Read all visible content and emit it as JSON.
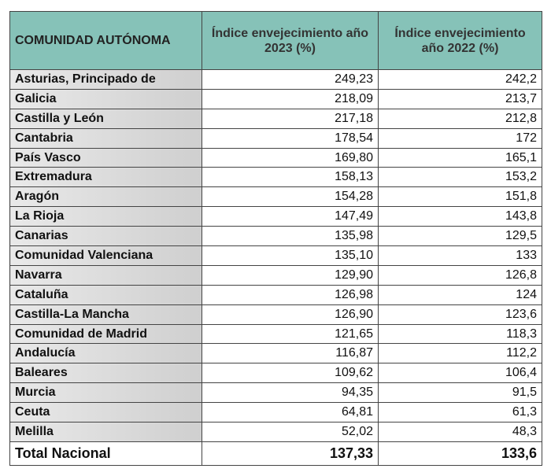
{
  "table": {
    "header": [
      "COMUNIDAD AUTÓNOMA",
      "Índice envejecimiento año 2023 (%)",
      "Índice envejecimiento año 2022 (%)"
    ],
    "rows": [
      [
        "Asturias, Principado de",
        "249,23",
        "242,2"
      ],
      [
        "Galicia",
        "218,09",
        "213,7"
      ],
      [
        "Castilla y León",
        "217,18",
        "212,8"
      ],
      [
        "Cantabria",
        "178,54",
        "172"
      ],
      [
        "País Vasco",
        "169,80",
        "165,1"
      ],
      [
        "Extremadura",
        "158,13",
        "153,2"
      ],
      [
        "Aragón",
        "154,28",
        "151,8"
      ],
      [
        "La Rioja",
        "147,49",
        "143,8"
      ],
      [
        "Canarias",
        "135,98",
        "129,5"
      ],
      [
        "Comunidad Valenciana",
        "135,10",
        "133"
      ],
      [
        "Navarra",
        "129,90",
        "126,8"
      ],
      [
        "Cataluña",
        "126,98",
        "124"
      ],
      [
        "Castilla-La Mancha",
        "126,90",
        "123,6"
      ],
      [
        "Comunidad de Madrid",
        "121,65",
        "118,3"
      ],
      [
        "Andalucía",
        "116,87",
        "112,2"
      ],
      [
        "Baleares",
        "109,62",
        "106,4"
      ],
      [
        "Murcia",
        "94,35",
        "91,5"
      ],
      [
        "Ceuta",
        "64,81",
        "61,3"
      ],
      [
        "Melilla",
        "52,02",
        "48,3"
      ]
    ],
    "total": [
      "Total Nacional",
      "137,33",
      "133,6"
    ]
  }
}
